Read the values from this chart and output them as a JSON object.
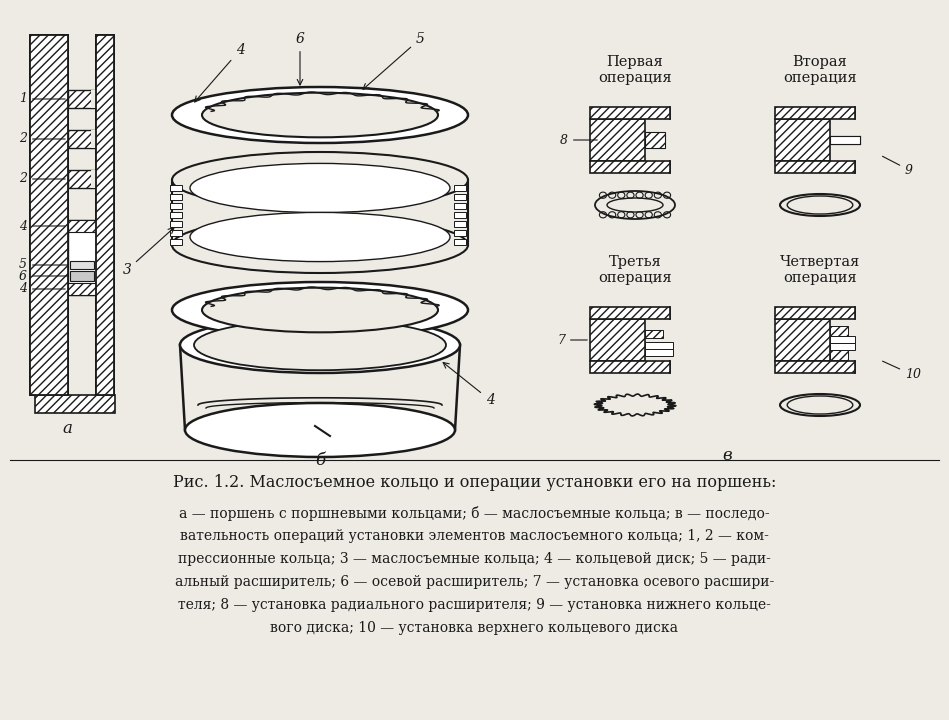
{
  "bg_color": "#eeebe5",
  "line_color": "#1a1a1a",
  "title_line1": "Рис. 1.2. Маслосъемное кольцо и операции установки его на поршень:",
  "caption_line1": "а — поршень с поршневыми кольцами; б — маслосъемные кольца; в — последо-",
  "caption_line2": "вательность операций установки элементов маслосъемного кольца; 1, 2 — ком-",
  "caption_line3": "прессионные кольца; 3 — маслосъемные кольца; 4 — кольцевой диск; 5 — ради-",
  "caption_line4": "альный расширитель; 6 — осевой расширитель; 7 — установка осевого расшири-",
  "caption_line5": "теля; 8 — установка радиального расширителя; 9 — установка нижнего кольце-",
  "caption_line6": "вого диска; 10 — установка верхнего кольцевого диска",
  "label_a": "а",
  "label_b": "б",
  "label_v": "в",
  "op1": "Первая\nоперация",
  "op2": "Вторая\nоперация",
  "op3": "Третья\nоперация",
  "op4": "Четвертая\nоперация"
}
